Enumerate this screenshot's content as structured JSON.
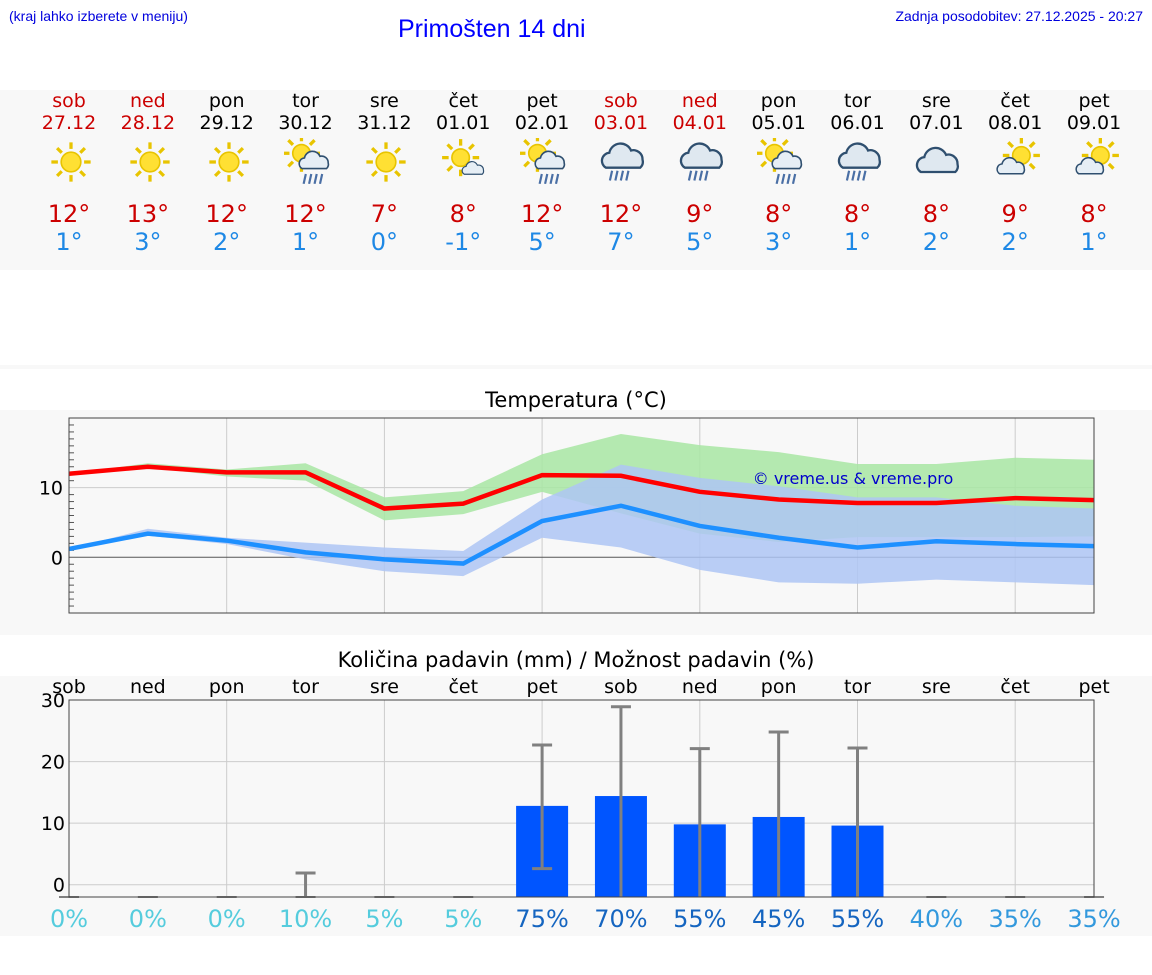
{
  "header": {
    "left_note": "(kraj lahko izberete v meniju)",
    "title": "Primošten 14 dni",
    "updated": "Zadnja posodobitev: 27.12.2025 - 20:27"
  },
  "colors": {
    "weekend": "#cc0000",
    "weekday": "#000000",
    "max_temp": "#cc0000",
    "min_temp": "#1e88e5",
    "max_line": "#ff0000",
    "min_line": "#1e90ff",
    "max_band": "#a8e6a3",
    "min_band": "#aec6f5",
    "bar": "#0055ff",
    "error": "#808080"
  },
  "days": [
    {
      "name": "sob",
      "date": "27.12",
      "weekend": true,
      "icon": "sun-icon",
      "max": "12°",
      "min": "1°"
    },
    {
      "name": "ned",
      "date": "28.12",
      "weekend": true,
      "icon": "sun-icon",
      "max": "13°",
      "min": "3°"
    },
    {
      "name": "pon",
      "date": "29.12",
      "weekend": false,
      "icon": "sun-icon",
      "max": "12°",
      "min": "2°"
    },
    {
      "name": "tor",
      "date": "30.12",
      "weekend": false,
      "icon": "sun-cloud-rain-icon",
      "max": "12°",
      "min": "1°"
    },
    {
      "name": "sre",
      "date": "31.12",
      "weekend": false,
      "icon": "sun-icon",
      "max": "7°",
      "min": "0°"
    },
    {
      "name": "čet",
      "date": "01.01",
      "weekend": false,
      "icon": "sun-small-cloud-icon",
      "max": "8°",
      "min": "-1°"
    },
    {
      "name": "pet",
      "date": "02.01",
      "weekend": false,
      "icon": "sun-cloud-rain-icon",
      "max": "12°",
      "min": "5°"
    },
    {
      "name": "sob",
      "date": "03.01",
      "weekend": true,
      "icon": "cloud-rain-icon",
      "max": "12°",
      "min": "7°"
    },
    {
      "name": "ned",
      "date": "04.01",
      "weekend": true,
      "icon": "cloud-rain-icon",
      "max": "9°",
      "min": "5°"
    },
    {
      "name": "pon",
      "date": "05.01",
      "weekend": false,
      "icon": "sun-cloud-rain-icon",
      "max": "8°",
      "min": "3°"
    },
    {
      "name": "tor",
      "date": "06.01",
      "weekend": false,
      "icon": "cloud-rain-icon",
      "max": "8°",
      "min": "1°"
    },
    {
      "name": "sre",
      "date": "07.01",
      "weekend": false,
      "icon": "cloud-icon",
      "max": "8°",
      "min": "2°"
    },
    {
      "name": "čet",
      "date": "08.01",
      "weekend": false,
      "icon": "sun-cloud-icon",
      "max": "9°",
      "min": "2°"
    },
    {
      "name": "pet",
      "date": "09.01",
      "weekend": false,
      "icon": "sun-cloud-icon",
      "max": "8°",
      "min": "1°"
    }
  ],
  "chart_data": [
    {
      "type": "line",
      "title": "Temperatura (°C)",
      "watermark": "© vreme.us & vreme.pro",
      "ylim": [
        -8,
        20
      ],
      "yticks": [
        0,
        10
      ],
      "series": [
        {
          "name": "max",
          "values": [
            12,
            13,
            12.2,
            12.2,
            7,
            7.7,
            11.8,
            11.7,
            9.4,
            8.3,
            7.8,
            7.8,
            8.5,
            8.2
          ],
          "upper": [
            12,
            13.5,
            12.6,
            13.5,
            8.6,
            9.5,
            14.8,
            17.7,
            16.1,
            15.1,
            13.4,
            13.4,
            14.3,
            14
          ],
          "lower": [
            12,
            12.9,
            11.6,
            11,
            5.3,
            6.2,
            9.4,
            6.3,
            3.4,
            2.2,
            2.9,
            2.9,
            2.9,
            3
          ]
        },
        {
          "name": "min",
          "values": [
            1.2,
            3.4,
            2.4,
            0.7,
            -0.3,
            -0.9,
            5.2,
            7.4,
            4.5,
            2.8,
            1.4,
            2.3,
            1.9,
            1.6
          ],
          "upper": [
            1.2,
            4.1,
            2.8,
            2.1,
            1.4,
            0.9,
            8.3,
            13.3,
            11.4,
            10.2,
            8.6,
            8.6,
            7.4,
            7
          ],
          "lower": [
            1.2,
            3.1,
            1.9,
            -0.3,
            -2,
            -2.7,
            2.8,
            1.4,
            -1.8,
            -3.6,
            -3.8,
            -3.2,
            -3.6,
            -4
          ]
        }
      ]
    },
    {
      "type": "bar",
      "title": "Količina padavin (mm) / Možnost padavin (%)",
      "categories": [
        "sob",
        "ned",
        "pon",
        "tor",
        "sre",
        "čet",
        "pet",
        "sob",
        "ned",
        "pon",
        "tor",
        "sre",
        "čet",
        "pet"
      ],
      "ylim": [
        -2,
        30
      ],
      "yticks": [
        0,
        10,
        20,
        30
      ],
      "values": [
        0,
        0,
        0,
        0.2,
        0,
        0,
        12.8,
        14.4,
        9.8,
        11,
        9.6,
        0,
        0,
        0
      ],
      "err_low": [
        0,
        0,
        0,
        0,
        0,
        0,
        2.6,
        0,
        0,
        0,
        0,
        0,
        0,
        0
      ],
      "err_high": [
        0,
        0,
        0,
        1.9,
        0,
        0,
        22.7,
        28.9,
        22.1,
        24.8,
        22.2,
        0,
        0,
        0
      ],
      "chance": [
        "0%",
        "0%",
        "0%",
        "10%",
        "5%",
        "5%",
        "75%",
        "70%",
        "55%",
        "45%",
        "55%",
        "40%",
        "35%",
        "35%"
      ]
    }
  ]
}
